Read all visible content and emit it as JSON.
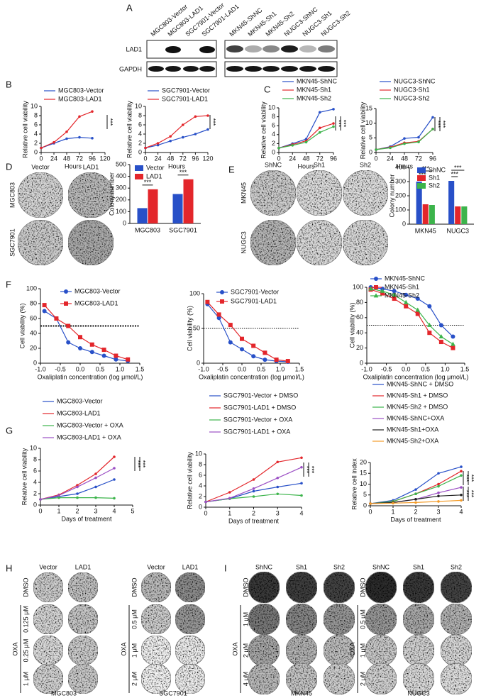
{
  "panel_labels": [
    "A",
    "B",
    "C",
    "D",
    "E",
    "F",
    "G",
    "H",
    "I"
  ],
  "blot": {
    "left_lanes": [
      "MGC803-Vector",
      "MGC803-LAD1",
      "SGC7901-Vector",
      "SGC7901-LAD1"
    ],
    "right_lanes": [
      "MKN45-ShNC",
      "MKN45-Sh1",
      "MKN45-Sh2",
      "NUGC3-ShNC",
      "NUGC3-Sh1",
      "NUGC3-Sh2"
    ],
    "rows": [
      "LAD1",
      "GAPDH"
    ]
  },
  "colony_d": {
    "columns": [
      "Vector",
      "LAD1"
    ],
    "rows": [
      "MGC803",
      "SGC7901"
    ]
  },
  "colony_e": {
    "columns": [
      "ShNC",
      "Sh1",
      "Sh2"
    ],
    "rows": [
      "MKN45",
      "NUGC3"
    ]
  },
  "colony_h": {
    "groups": [
      {
        "columns": [
          "Vector",
          "LAD1"
        ],
        "rows": [
          "DMSO",
          "0.125 μM",
          "0.25 μM",
          "1 μM"
        ],
        "treatment": "OXA",
        "cell": "MGC803"
      },
      {
        "columns": [
          "Vector",
          "LAD1"
        ],
        "rows": [
          "DMSO",
          "0.5 μM",
          "1 μM",
          "2 μM"
        ],
        "treatment": "OXA",
        "cell": "SGC7901"
      }
    ]
  },
  "colony_i": {
    "groups": [
      {
        "columns": [
          "ShNC",
          "Sh1",
          "Sh2"
        ],
        "rows": [
          "DMSO",
          "1 μM",
          "2 μM",
          "4 μM"
        ],
        "treatment": "OXA",
        "cell": "MKN45"
      },
      {
        "columns": [
          "ShNC",
          "Sh1",
          "Sh2"
        ],
        "rows": [
          "DMSO",
          "0.5 μM",
          "1 μM",
          "2 μM"
        ],
        "treatment": "OXA",
        "cell": "NUGC3"
      }
    ]
  },
  "chart_data": [
    {
      "type": "line",
      "x": [
        0,
        24,
        48,
        72,
        96
      ],
      "xlim": [
        0,
        120
      ],
      "xticks": [
        0,
        24,
        48,
        72,
        96,
        120
      ],
      "ylim": [
        0,
        10
      ],
      "yticks": [
        0,
        2,
        4,
        6,
        8,
        10
      ],
      "x_label": "Hours",
      "y_label": "Relative cell viability",
      "series": [
        {
          "name": "MGC803-Vector",
          "color": "#2850c8",
          "values": [
            1,
            2,
            3,
            3.3,
            3.1
          ]
        },
        {
          "name": "MGC803-LAD1",
          "color": "#e3262b",
          "values": [
            1,
            2.2,
            4.5,
            7.8,
            8.9
          ]
        }
      ],
      "annotations": [
        "***"
      ]
    },
    {
      "type": "line",
      "x": [
        0,
        24,
        48,
        72,
        96,
        120
      ],
      "xlim": [
        0,
        120
      ],
      "xticks": [
        0,
        24,
        48,
        72,
        96,
        120
      ],
      "ylim": [
        0,
        10
      ],
      "yticks": [
        0,
        2,
        4,
        6,
        8,
        10
      ],
      "x_label": "Hours",
      "y_label": "Relative cell viability",
      "series": [
        {
          "name": "SGC7901-Vector",
          "color": "#2850c8",
          "values": [
            1,
            1.6,
            2.5,
            3.3,
            4,
            5
          ]
        },
        {
          "name": "SGC7901-LAD1",
          "color": "#e3262b",
          "values": [
            1,
            2,
            3.5,
            6,
            7.8,
            8
          ]
        }
      ],
      "annotations": [
        "***"
      ]
    },
    {
      "type": "line",
      "x": [
        0,
        24,
        48,
        72,
        96
      ],
      "xlim": [
        0,
        96
      ],
      "xticks": [
        0,
        24,
        48,
        72,
        96
      ],
      "ylim": [
        0,
        10
      ],
      "yticks": [
        0,
        2,
        4,
        6,
        8,
        10
      ],
      "x_label": "Hours",
      "y_label": "Relative cell viability",
      "series": [
        {
          "name": "MKN45-ShNC",
          "color": "#2850c8",
          "values": [
            1,
            2,
            3,
            9,
            9.7
          ]
        },
        {
          "name": "MKN45-Sh1",
          "color": "#e3262b",
          "values": [
            1,
            1.8,
            2.6,
            5.5,
            6.5
          ]
        },
        {
          "name": "MKN45-Sh2",
          "color": "#3cb44b",
          "values": [
            1,
            1.6,
            2.3,
            4.5,
            5.8
          ]
        }
      ],
      "annotations": [
        "***",
        "***"
      ]
    },
    {
      "type": "line",
      "x": [
        0,
        24,
        48,
        72,
        96
      ],
      "xlim": [
        0,
        96
      ],
      "xticks": [
        0,
        24,
        48,
        72,
        96
      ],
      "ylim": [
        0,
        15
      ],
      "yticks": [
        0,
        5,
        10,
        15
      ],
      "x_label": "Hours",
      "y_label": "Relative cell viability",
      "series": [
        {
          "name": "NUGC3-ShNC",
          "color": "#2850c8",
          "values": [
            1,
            2,
            4.8,
            5.2,
            12
          ]
        },
        {
          "name": "NUGC3-Sh1",
          "color": "#e3262b",
          "values": [
            1,
            1.8,
            3.3,
            3.8,
            8
          ]
        },
        {
          "name": "NUGC3-Sh2",
          "color": "#3cb44b",
          "values": [
            1,
            1.6,
            3,
            3.6,
            8
          ]
        }
      ],
      "annotations": [
        "***",
        "***"
      ]
    },
    {
      "type": "bar",
      "categories": [
        "MGC803",
        "SGC7901"
      ],
      "ylim": [
        0,
        500
      ],
      "yticks": [
        0,
        100,
        200,
        300,
        400,
        500
      ],
      "y_label": "Colony number",
      "series": [
        {
          "name": "Vector",
          "color": "#2850c8",
          "values": [
            130,
            250
          ]
        },
        {
          "name": "LAD1",
          "color": "#e3262b",
          "values": [
            290,
            375
          ]
        }
      ],
      "annotations": [
        "***",
        "***"
      ]
    },
    {
      "type": "bar",
      "categories": [
        "MKN45",
        "NUGC3"
      ],
      "ylim": [
        0,
        400
      ],
      "yticks": [
        0,
        100,
        200,
        300,
        400
      ],
      "y_label": "Colony number",
      "series": [
        {
          "name": "ShNC",
          "color": "#2850c8",
          "values": [
            300,
            305
          ]
        },
        {
          "name": "Sh1",
          "color": "#e3262b",
          "values": [
            140,
            125
          ]
        },
        {
          "name": "Sh2",
          "color": "#3cb44b",
          "values": [
            135,
            125
          ]
        }
      ],
      "annotations": [
        "***",
        "***",
        "***",
        "***"
      ]
    },
    {
      "type": "scatter",
      "x": [
        -0.9,
        -0.6,
        -0.3,
        0,
        0.3,
        0.6,
        0.9,
        1.2
      ],
      "xlim": [
        -1,
        1.5
      ],
      "xticks": [
        {
          "value": -1,
          "label": "-1.0"
        },
        -0.5,
        {
          "value": 0,
          "label": "0.0"
        },
        0.5,
        {
          "value": 1,
          "label": "1.0"
        },
        1.5
      ],
      "ylim": [
        0,
        100
      ],
      "yticks": [
        0,
        20,
        40,
        60,
        80,
        100
      ],
      "hline": 50,
      "x_label": "Oxaliplatin concentration (log μmol/L)",
      "y_label": "Cell viability (%)",
      "series": [
        {
          "name": "MGC803-Vector",
          "color": "#2850c8",
          "marker": "circle",
          "values": [
            70,
            60,
            28,
            20,
            15,
            10,
            5,
            3
          ]
        },
        {
          "name": "MGC803-LAD1",
          "color": "#e3262b",
          "marker": "square",
          "values": [
            78,
            60,
            50,
            35,
            25,
            18,
            10,
            5
          ]
        }
      ]
    },
    {
      "type": "scatter",
      "x": [
        -0.9,
        -0.6,
        -0.3,
        0,
        0.3,
        0.6,
        0.9,
        1.2
      ],
      "xlim": [
        -1,
        1.5
      ],
      "xticks": [
        {
          "value": -1,
          "label": "-1.0"
        },
        -0.5,
        {
          "value": 0,
          "label": "0.0"
        },
        0.5,
        {
          "value": 1,
          "label": "1.0"
        },
        1.5
      ],
      "ylim": [
        0,
        100
      ],
      "yticks": [
        0,
        50,
        100
      ],
      "hline": 50,
      "x_label": "Oxaliplatin concentration (log μmol/L)",
      "y_label": "Cell viability (%)",
      "series": [
        {
          "name": "SGC7901-Vector",
          "color": "#2850c8",
          "marker": "circle",
          "values": [
            85,
            65,
            30,
            20,
            10,
            5,
            3,
            2
          ]
        },
        {
          "name": "SGC7901-LAD1",
          "color": "#e3262b",
          "marker": "square",
          "values": [
            88,
            70,
            55,
            35,
            25,
            15,
            5,
            3
          ]
        }
      ]
    },
    {
      "type": "scatter",
      "x": [
        -0.9,
        -0.6,
        -0.3,
        0,
        0.3,
        0.6,
        0.9,
        1.2
      ],
      "xlim": [
        -1,
        1.5
      ],
      "xticks": [
        {
          "value": -1,
          "label": "-1.0"
        },
        -0.5,
        {
          "value": 0,
          "label": "0.0"
        },
        0.5,
        {
          "value": 1,
          "label": "1.0"
        },
        1.5
      ],
      "ylim": [
        0,
        100
      ],
      "yticks": [
        0,
        20,
        40,
        60,
        80,
        100
      ],
      "hline": 50,
      "x_label": "Oxaliplatin concentration (log μmol/L)",
      "y_label": "Cell viability (%)",
      "series": [
        {
          "name": "MKN45-ShNC",
          "color": "#2850c8",
          "marker": "circle",
          "values": [
            100,
            98,
            95,
            90,
            85,
            75,
            50,
            35
          ]
        },
        {
          "name": "MKN45-Sh1",
          "color": "#e3262b",
          "marker": "square",
          "values": [
            97,
            92,
            85,
            75,
            65,
            40,
            28,
            20
          ]
        },
        {
          "name": "MKN45-Sh2",
          "color": "#3cb44b",
          "marker": "triangle",
          "values": [
            98,
            95,
            90,
            80,
            70,
            50,
            35,
            25
          ]
        }
      ]
    },
    {
      "type": "line",
      "x": [
        0,
        1,
        2,
        3,
        4
      ],
      "xlim": [
        0,
        5
      ],
      "xticks": [
        0,
        1,
        2,
        3,
        4,
        5
      ],
      "ylim": [
        0,
        10
      ],
      "yticks": [
        0,
        2,
        4,
        6,
        8,
        10
      ],
      "x_label": "Days of treatment",
      "y_label": "Relative cell viability",
      "series": [
        {
          "name": "MGC803-Vector",
          "color": "#2850c8",
          "values": [
            1,
            1.5,
            2,
            3.2,
            4.5
          ]
        },
        {
          "name": "MGC803-LAD1",
          "color": "#e3262b",
          "values": [
            1,
            1.8,
            3.5,
            5.5,
            8.5
          ]
        },
        {
          "name": "MGC803-Vector + OXA",
          "color": "#3cb44b",
          "values": [
            1,
            1.3,
            1.3,
            1.3,
            1.2
          ]
        },
        {
          "name": "MGC803-LAD1 + OXA",
          "color": "#9b4fc4",
          "values": [
            1,
            1.7,
            3.2,
            4.8,
            6.5
          ]
        }
      ],
      "annotations": [
        "***",
        "***"
      ]
    },
    {
      "type": "line",
      "x": [
        0,
        1,
        2,
        3,
        4
      ],
      "xlim": [
        0,
        4
      ],
      "xticks": [
        0,
        1,
        2,
        3,
        4
      ],
      "ylim": [
        0,
        10
      ],
      "yticks": [
        0,
        2,
        4,
        6,
        8,
        10
      ],
      "x_label": "Days of treatment",
      "y_label": "Relative cell viability",
      "series": [
        {
          "name": "SGC7901-Vector + DMSO",
          "color": "#2850c8",
          "values": [
            1,
            1.6,
            3,
            3.8,
            4.5
          ]
        },
        {
          "name": "SGC7901-LAD1 + DMSO",
          "color": "#e3262b",
          "values": [
            1,
            2.8,
            5.2,
            8.5,
            9.3
          ]
        },
        {
          "name": "SGC7901-Vector + OXA",
          "color": "#3cb44b",
          "values": [
            1,
            1.6,
            2,
            2.5,
            2.2
          ]
        },
        {
          "name": "SGC7901-LAD1 + OXA",
          "color": "#9b4fc4",
          "values": [
            1,
            1.7,
            3.5,
            5.5,
            7.5
          ]
        }
      ],
      "annotations": [
        "***",
        "***"
      ]
    },
    {
      "type": "line",
      "x": [
        0,
        1,
        2,
        3,
        4
      ],
      "xlim": [
        0,
        4
      ],
      "xticks": [
        0,
        1,
        2,
        3,
        4
      ],
      "ylim": [
        0,
        20
      ],
      "yticks": [
        0,
        5,
        10,
        15,
        20
      ],
      "x_label": "Days of treatment",
      "y_label": "Relative cell index",
      "series": [
        {
          "name": "MKN45-ShNC + DMSO",
          "color": "#2850c8",
          "values": [
            1,
            2.5,
            7.5,
            15,
            18
          ]
        },
        {
          "name": "MKN45-Sh1  + DMSO",
          "color": "#e3262b",
          "values": [
            1,
            2,
            5.5,
            10,
            16
          ]
        },
        {
          "name": "MKN45-Sh2  + DMSO",
          "color": "#3cb44b",
          "values": [
            1,
            2,
            5.5,
            9,
            14
          ]
        },
        {
          "name": "MKN45-ShNC+OXA",
          "color": "#9b4fc4",
          "values": [
            1,
            1.5,
            3,
            6,
            8.5
          ]
        },
        {
          "name": "MKN45-Sh1+OXA",
          "color": "#222222",
          "values": [
            1,
            1.5,
            3,
            4.5,
            5
          ]
        },
        {
          "name": "MKN45-Sh2+OXA",
          "color": "#f39c2a",
          "values": [
            1,
            1.2,
            1.5,
            2,
            2.5
          ]
        }
      ],
      "annotations": [
        "***",
        "***",
        "***",
        "***"
      ]
    }
  ]
}
